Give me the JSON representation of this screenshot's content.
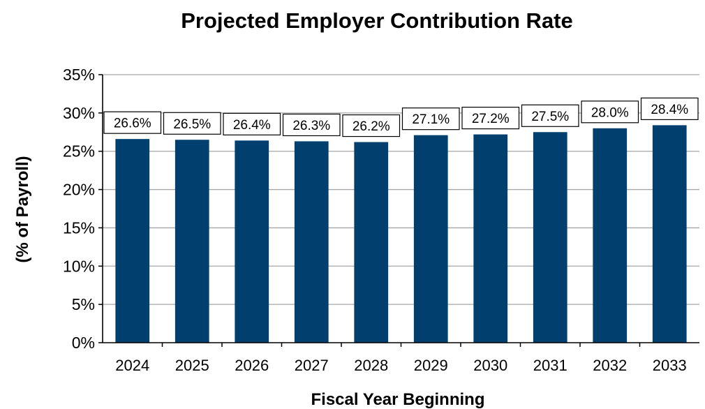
{
  "chart_data": {
    "type": "bar",
    "title": "Projected Employer Contribution Rate",
    "xlabel": "Fiscal Year Beginning",
    "ylabel": "(% of Payroll)",
    "categories": [
      "2024",
      "2025",
      "2026",
      "2027",
      "2028",
      "2029",
      "2030",
      "2031",
      "2032",
      "2033"
    ],
    "values": [
      26.6,
      26.5,
      26.4,
      26.3,
      26.2,
      27.1,
      27.2,
      27.5,
      28.0,
      28.4
    ],
    "data_labels": [
      "26.6%",
      "26.5%",
      "26.4%",
      "26.3%",
      "26.2%",
      "27.1%",
      "27.2%",
      "27.5%",
      "28.0%",
      "28.4%"
    ],
    "ylim": [
      0,
      35
    ],
    "yticks": [
      0,
      5,
      10,
      15,
      20,
      25,
      30,
      35
    ],
    "ytick_labels": [
      "0%",
      "5%",
      "10%",
      "15%",
      "20%",
      "25%",
      "30%",
      "35%"
    ],
    "grid": true,
    "legend": "none",
    "bar_color": "#003F6E",
    "grid_color": "#A6A6A6"
  }
}
